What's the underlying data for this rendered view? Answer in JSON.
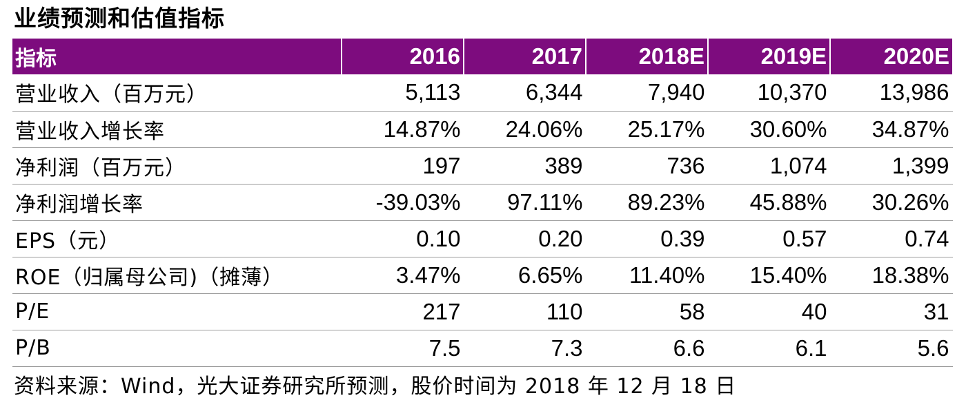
{
  "title": "业绩预测和估值指标",
  "header": {
    "label": "指标",
    "years": [
      "2016",
      "2017",
      "2018E",
      "2019E",
      "2020E"
    ]
  },
  "rows": [
    {
      "label": "营业收入（百万元）",
      "values": [
        "5,113",
        "6,344",
        "7,940",
        "10,370",
        "13,986"
      ]
    },
    {
      "label": "营业收入增长率",
      "values": [
        "14.87%",
        "24.06%",
        "25.17%",
        "30.60%",
        "34.87%"
      ]
    },
    {
      "label": "净利润（百万元）",
      "values": [
        "197",
        "389",
        "736",
        "1,074",
        "1,399"
      ]
    },
    {
      "label": "净利润增长率",
      "values": [
        "-39.03%",
        "97.11%",
        "89.23%",
        "45.88%",
        "30.26%"
      ]
    },
    {
      "label": "EPS（元）",
      "values": [
        "0.10",
        "0.20",
        "0.39",
        "0.57",
        "0.74"
      ]
    },
    {
      "label": "ROE（归属母公司)（摊薄）",
      "values": [
        "3.47%",
        "6.65%",
        "11.40%",
        "15.40%",
        "18.38%"
      ]
    },
    {
      "label": "P/E",
      "values": [
        "217",
        "110",
        "58",
        "40",
        "31"
      ]
    },
    {
      "label": "P/B",
      "values": [
        "7.5",
        "7.3",
        "6.6",
        "6.1",
        "5.6"
      ]
    }
  ],
  "source": "资料来源：Wind，光大证券研究所预测，股价时间为 2018 年 12 月 18 日",
  "colors": {
    "header_bg": "#7d0c7e",
    "header_text": "#ffffff",
    "row_divider": "#9a9a9a"
  }
}
